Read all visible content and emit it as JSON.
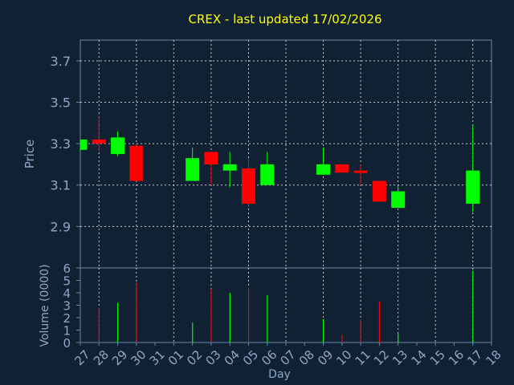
{
  "chart_data": [
    {
      "type": "candlestick",
      "title": "CREX - last updated 17/02/2026",
      "ylabel": "Price",
      "xlabel": "",
      "ylim": [
        2.7,
        3.8
      ],
      "y_ticks": [
        "2.9",
        "3.1",
        "3.3",
        "3.5",
        "3.7"
      ],
      "grid": true,
      "up_color": "#00ff00",
      "down_color": "#ff0000",
      "candles": [
        {
          "x": "27",
          "open": 3.27,
          "high": 3.32,
          "low": 3.26,
          "close": 3.32
        },
        {
          "x": "28",
          "open": 3.32,
          "high": 3.43,
          "low": 3.26,
          "close": 3.3
        },
        {
          "x": "29",
          "open": 3.25,
          "high": 3.36,
          "low": 3.24,
          "close": 3.33
        },
        {
          "x": "30",
          "open": 3.29,
          "high": 3.3,
          "low": 3.12,
          "close": 3.12
        },
        {
          "x": "02",
          "open": 3.12,
          "high": 3.28,
          "low": 3.12,
          "close": 3.23
        },
        {
          "x": "03",
          "open": 3.26,
          "high": 3.26,
          "low": 3.1,
          "close": 3.2
        },
        {
          "x": "04",
          "open": 3.17,
          "high": 3.26,
          "low": 3.09,
          "close": 3.2
        },
        {
          "x": "05",
          "open": 3.18,
          "high": 3.23,
          "low": 3.0,
          "close": 3.01
        },
        {
          "x": "06",
          "open": 3.1,
          "high": 3.26,
          "low": 3.1,
          "close": 3.2
        },
        {
          "x": "09",
          "open": 3.15,
          "high": 3.28,
          "low": 3.15,
          "close": 3.2
        },
        {
          "x": "10",
          "open": 3.2,
          "high": 3.2,
          "low": 3.16,
          "close": 3.16
        },
        {
          "x": "11",
          "open": 3.17,
          "high": 3.2,
          "low": 3.1,
          "close": 3.16
        },
        {
          "x": "12",
          "open": 3.12,
          "high": 3.12,
          "low": 3.02,
          "close": 3.02
        },
        {
          "x": "13",
          "open": 2.99,
          "high": 3.1,
          "low": 2.99,
          "close": 3.07
        },
        {
          "x": "17",
          "open": 3.01,
          "high": 3.39,
          "low": 2.97,
          "close": 3.17
        }
      ]
    },
    {
      "type": "bar",
      "ylabel": "Volume (0000)",
      "xlabel": "Day",
      "ylim": [
        0,
        6
      ],
      "y_ticks": [
        "0",
        "1",
        "2",
        "3",
        "4",
        "5",
        "6"
      ],
      "categories": [
        "27",
        "28",
        "29",
        "30",
        "31",
        "01",
        "02",
        "03",
        "04",
        "05",
        "06",
        "07",
        "08",
        "09",
        "10",
        "11",
        "12",
        "13",
        "14",
        "15",
        "16",
        "17",
        "18"
      ],
      "bars": [
        {
          "x": "28",
          "value": 2.8,
          "color": "#ff0000"
        },
        {
          "x": "29",
          "value": 3.2,
          "color": "#00ff00"
        },
        {
          "x": "30",
          "value": 4.8,
          "color": "#ff0000"
        },
        {
          "x": "02",
          "value": 1.6,
          "color": "#00ff00"
        },
        {
          "x": "03",
          "value": 4.3,
          "color": "#ff0000"
        },
        {
          "x": "04",
          "value": 4.0,
          "color": "#00ff00"
        },
        {
          "x": "05",
          "value": 4.4,
          "color": "#ff0000"
        },
        {
          "x": "06",
          "value": 3.8,
          "color": "#00ff00"
        },
        {
          "x": "09",
          "value": 1.9,
          "color": "#00ff00"
        },
        {
          "x": "10",
          "value": 0.6,
          "color": "#ff0000"
        },
        {
          "x": "11",
          "value": 1.8,
          "color": "#ff0000"
        },
        {
          "x": "12",
          "value": 3.3,
          "color": "#ff0000"
        },
        {
          "x": "13",
          "value": 0.7,
          "color": "#00ff00"
        },
        {
          "x": "17",
          "value": 5.8,
          "color": "#00ff00"
        }
      ]
    }
  ]
}
